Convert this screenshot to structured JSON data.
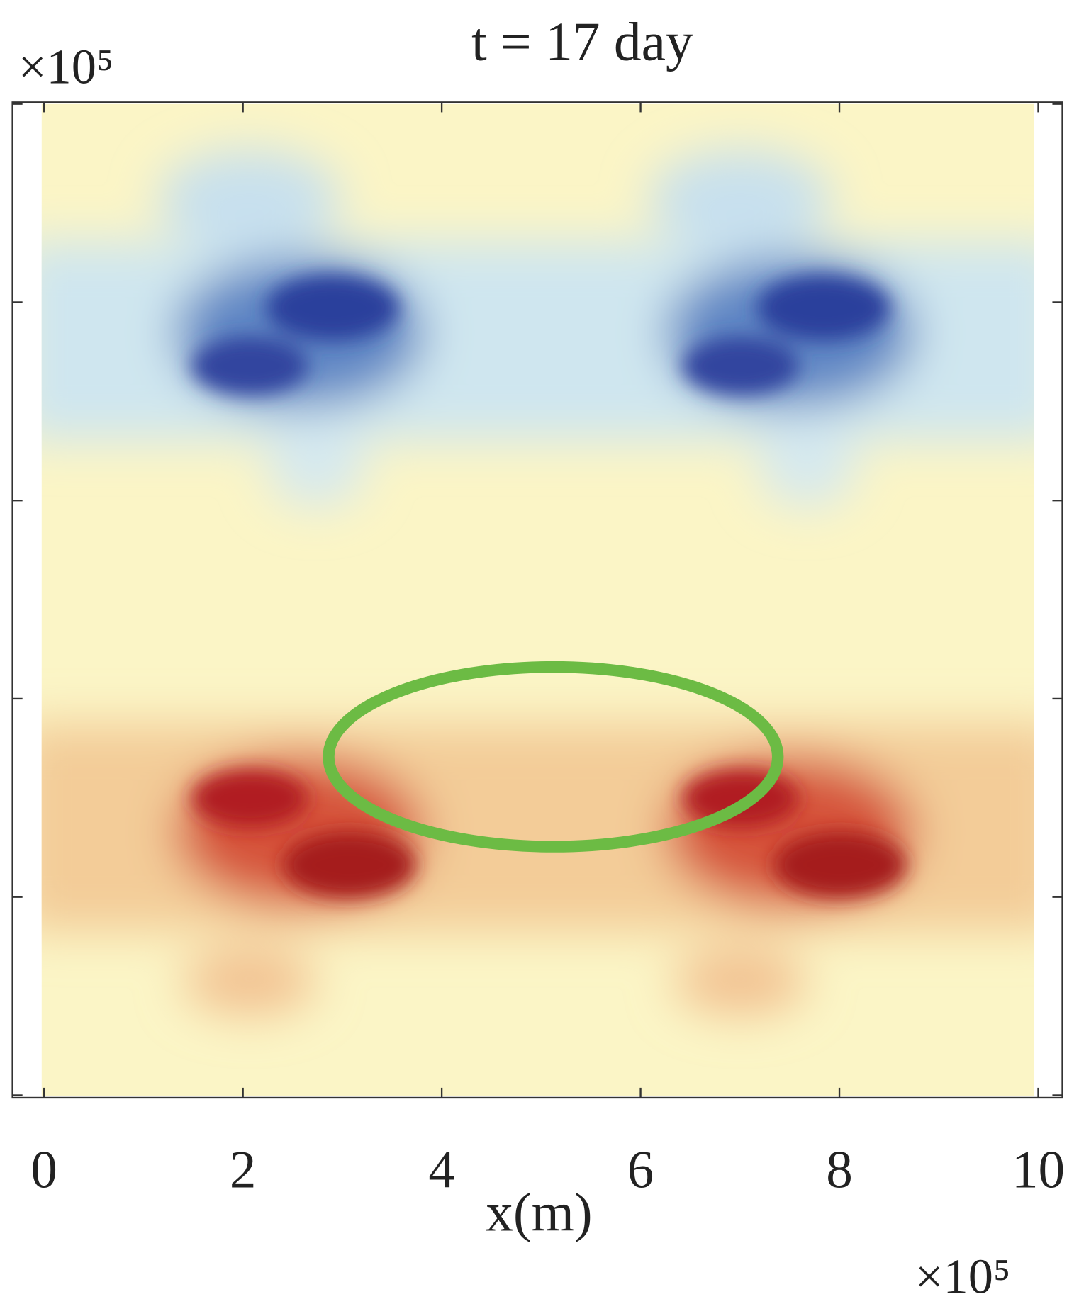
{
  "chart_data": {
    "type": "heatmap",
    "title": "t = 17 day",
    "x_label": "x(m)",
    "x_multiplier": "×10⁵",
    "y_multiplier": "×10⁵",
    "xlim": [
      0,
      10
    ],
    "xticks": [
      0,
      2,
      4,
      6,
      8,
      10
    ],
    "ylim": [
      0,
      10
    ],
    "yticks": [
      0,
      2,
      4,
      6,
      8,
      10
    ]
  }
}
